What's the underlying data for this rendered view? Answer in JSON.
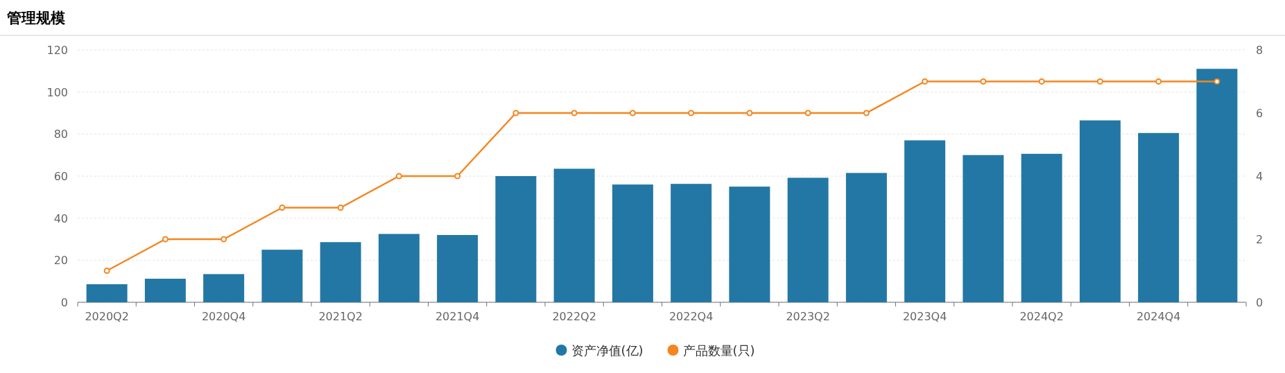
{
  "chart_data": {
    "type": "bar",
    "title": "管理规模",
    "categories": [
      "2020Q2",
      null,
      "2020Q4",
      null,
      "2021Q2",
      null,
      "2021Q4",
      null,
      "2022Q2",
      null,
      "2022Q4",
      null,
      "2023Q2",
      null,
      "2023Q4",
      null,
      "2024Q2",
      null,
      "2024Q4",
      null
    ],
    "series": [
      {
        "name": "资产净值(亿)",
        "color": "#2377a4",
        "values": [
          8.6,
          11.2,
          13.4,
          25,
          28.6,
          32.5,
          32,
          60,
          63.5,
          56,
          56.3,
          55,
          59.2,
          61.5,
          77,
          70,
          70.6,
          86.5,
          80.5,
          111
        ]
      },
      {
        "name": "产品数量(只)",
        "type": "line",
        "axis": "y2",
        "color": "#f4861f",
        "marker": "circle",
        "values": [
          1,
          2,
          2,
          3,
          3,
          4,
          4,
          6,
          6,
          6,
          6,
          6,
          6,
          6,
          7,
          7,
          7,
          7,
          7,
          7
        ]
      }
    ],
    "ylim": [
      0,
      120
    ],
    "yticks": [
      0,
      20,
      40,
      60,
      80,
      100,
      120
    ],
    "y2lim": [
      0,
      8
    ],
    "y2ticks": [
      0,
      2,
      4,
      6,
      8
    ],
    "grid": "y",
    "legend": "bottom"
  }
}
